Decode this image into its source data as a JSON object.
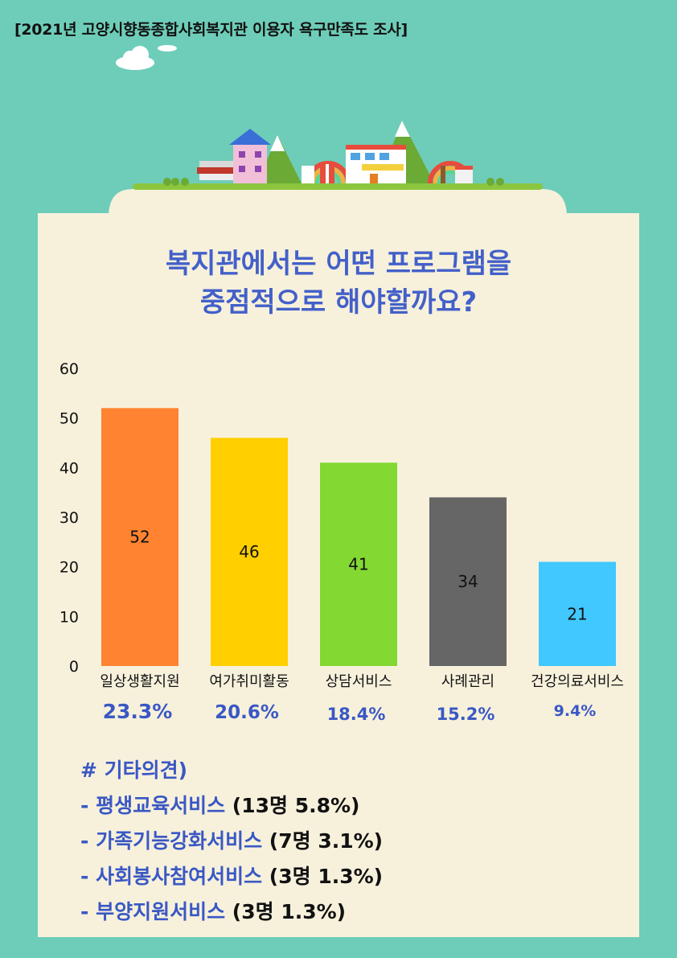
{
  "header": {
    "survey_title": "[2021년 고양시향동종합사회복지관 이용자 욕구만족도 조사]"
  },
  "question": {
    "line1": "복지관에서는 어떤 프로그램을",
    "line2": "중점적으로 해야할까요?"
  },
  "colors": {
    "background": "#6ecdb9",
    "card": "#f7f1dc",
    "accent_blue": "#4360c9"
  },
  "chart_data": {
    "type": "bar",
    "categories": [
      "일상생활지원",
      "여가취미활동",
      "상담서비스",
      "사례관리",
      "건강의료서비스"
    ],
    "values": [
      52,
      46,
      41,
      34,
      21
    ],
    "data_labels": [
      "52",
      "46",
      "41",
      "34",
      "21"
    ],
    "percents": [
      "23.3%",
      "20.6%",
      "18.4%",
      "15.2%",
      "9.4%"
    ],
    "colors": [
      "#ff8330",
      "#ffcf00",
      "#84d832",
      "#666666",
      "#40c8ff"
    ],
    "ylim": [
      0,
      60
    ],
    "yticks": [
      0,
      10,
      20,
      30,
      40,
      50,
      60
    ],
    "grid": false,
    "legend": "none"
  },
  "others": {
    "heading": "# 기타의견)",
    "items": [
      {
        "name": "- 평생교육서비스",
        "stat": " (13명 5.8%)"
      },
      {
        "name": "- 가족기능강화서비스",
        "stat": " (7명 3.1%)"
      },
      {
        "name": "- 사회봉사참여서비스",
        "stat": " (3명 1.3%)"
      },
      {
        "name": "- 부양지원서비스",
        "stat": " (3명 1.3%)"
      }
    ]
  }
}
